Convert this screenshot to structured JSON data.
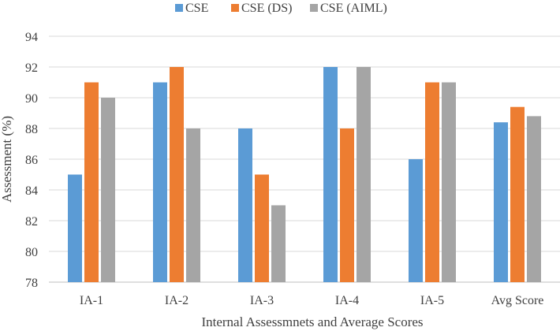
{
  "chart_data": {
    "type": "bar",
    "title": "",
    "xlabel": "Internal Assessmnets and Average Scores",
    "ylabel": "Assessment (%)",
    "ylim": [
      78,
      94
    ],
    "yticks": [
      78,
      80,
      82,
      84,
      86,
      88,
      90,
      92,
      94
    ],
    "grid": true,
    "legend_position": "top-center",
    "categories": [
      "IA-1",
      "IA-2",
      "IA-3",
      "IA-4",
      "IA-5",
      "Avg Score"
    ],
    "series": [
      {
        "name": "CSE",
        "color": "#5b9bd5",
        "values": [
          85,
          91,
          88,
          92,
          86,
          88.4
        ]
      },
      {
        "name": "CSE (DS)",
        "color": "#ed7d31",
        "values": [
          91,
          92,
          85,
          88,
          91,
          89.4
        ]
      },
      {
        "name": "CSE (AIML)",
        "color": "#a5a5a5",
        "values": [
          90,
          88,
          83,
          92,
          91,
          88.8
        ]
      }
    ]
  }
}
